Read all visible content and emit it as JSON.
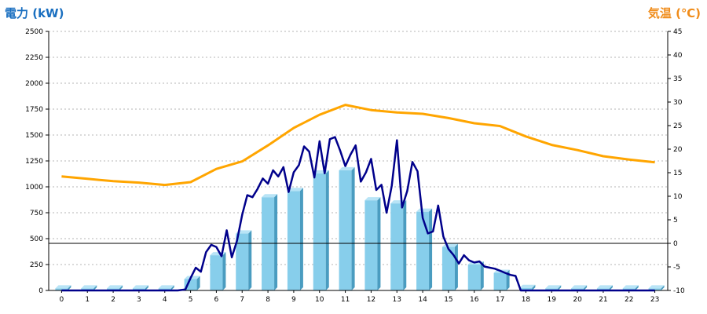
{
  "chart_data": {
    "type": "bar",
    "title": "",
    "ylabel_left": "電力 (kW)",
    "ylabel_right": "気温 (℃)",
    "colors": {
      "left_title": "#1a6fc0",
      "right_title": "#f08c1a",
      "bar": "#87ceeb",
      "bar_side": "#4a9cc0",
      "bar_top": "#b8e4f6",
      "power_line": "#00008b",
      "temperature_line": "#ffa500",
      "grid": "#b4b4b4"
    },
    "ylim_left": [
      0,
      2500
    ],
    "ylim_right": [
      -10,
      45
    ],
    "left_ticks": [
      0,
      250,
      500,
      750,
      1000,
      1250,
      1500,
      1750,
      2000,
      2250,
      2500
    ],
    "right_ticks": [
      -10,
      -5,
      0,
      5,
      10,
      15,
      20,
      25,
      30,
      35,
      40,
      45
    ],
    "categories": [
      "0",
      "1",
      "2",
      "3",
      "4",
      "5",
      "6",
      "7",
      "8",
      "9",
      "10",
      "11",
      "12",
      "13",
      "14",
      "15",
      "16",
      "17",
      "18",
      "19",
      "20",
      "21",
      "22",
      "23"
    ],
    "grid": true,
    "series": [
      {
        "kind": "bar",
        "axis": "left",
        "values": [
          20,
          20,
          20,
          20,
          20,
          110,
          340,
          550,
          900,
          960,
          1130,
          1160,
          870,
          840,
          760,
          420,
          250,
          170,
          25,
          20,
          20,
          20,
          20,
          20
        ]
      },
      {
        "kind": "line",
        "axis": "left",
        "x": [
          0,
          1,
          2,
          3,
          4,
          4.5,
          4.8,
          5.0,
          5.2,
          5.4,
          5.6,
          5.8,
          6.0,
          6.2,
          6.4,
          6.6,
          6.8,
          7.0,
          7.2,
          7.4,
          7.6,
          7.8,
          8.0,
          8.2,
          8.4,
          8.6,
          8.8,
          9.0,
          9.2,
          9.4,
          9.6,
          9.8,
          10.0,
          10.2,
          10.4,
          10.6,
          10.8,
          11.0,
          11.2,
          11.4,
          11.6,
          11.8,
          12.0,
          12.2,
          12.4,
          12.6,
          12.8,
          13.0,
          13.2,
          13.4,
          13.6,
          13.8,
          14.0,
          14.2,
          14.4,
          14.6,
          14.8,
          15.0,
          15.2,
          15.4,
          15.6,
          15.8,
          16.0,
          16.2,
          16.4,
          16.6,
          16.8,
          17.0,
          17.2,
          17.4,
          17.6,
          17.8,
          18,
          19,
          20,
          21,
          22,
          23
        ],
        "values": [
          0,
          0,
          0,
          0,
          0,
          0,
          10,
          120,
          220,
          180,
          370,
          440,
          420,
          330,
          580,
          320,
          480,
          730,
          920,
          900,
          980,
          1080,
          1030,
          1160,
          1100,
          1190,
          950,
          1140,
          1210,
          1390,
          1340,
          1090,
          1440,
          1130,
          1460,
          1480,
          1350,
          1200,
          1310,
          1400,
          1050,
          1140,
          1270,
          970,
          1020,
          750,
          1010,
          1450,
          800,
          960,
          1240,
          1150,
          700,
          550,
          570,
          820,
          520,
          400,
          340,
          260,
          340,
          290,
          270,
          280,
          230,
          220,
          210,
          190,
          170,
          150,
          140,
          0,
          0,
          0,
          0,
          0,
          0,
          0
        ]
      },
      {
        "kind": "line",
        "axis": "right",
        "values": [
          14.2,
          13.7,
          13.2,
          12.9,
          12.4,
          13.0,
          15.8,
          17.4,
          20.8,
          24.5,
          27.3,
          29.4,
          28.3,
          27.8,
          27.5,
          26.6,
          25.5,
          24.9,
          22.7,
          20.9,
          19.8,
          18.5,
          17.8,
          17.2
        ]
      }
    ]
  }
}
